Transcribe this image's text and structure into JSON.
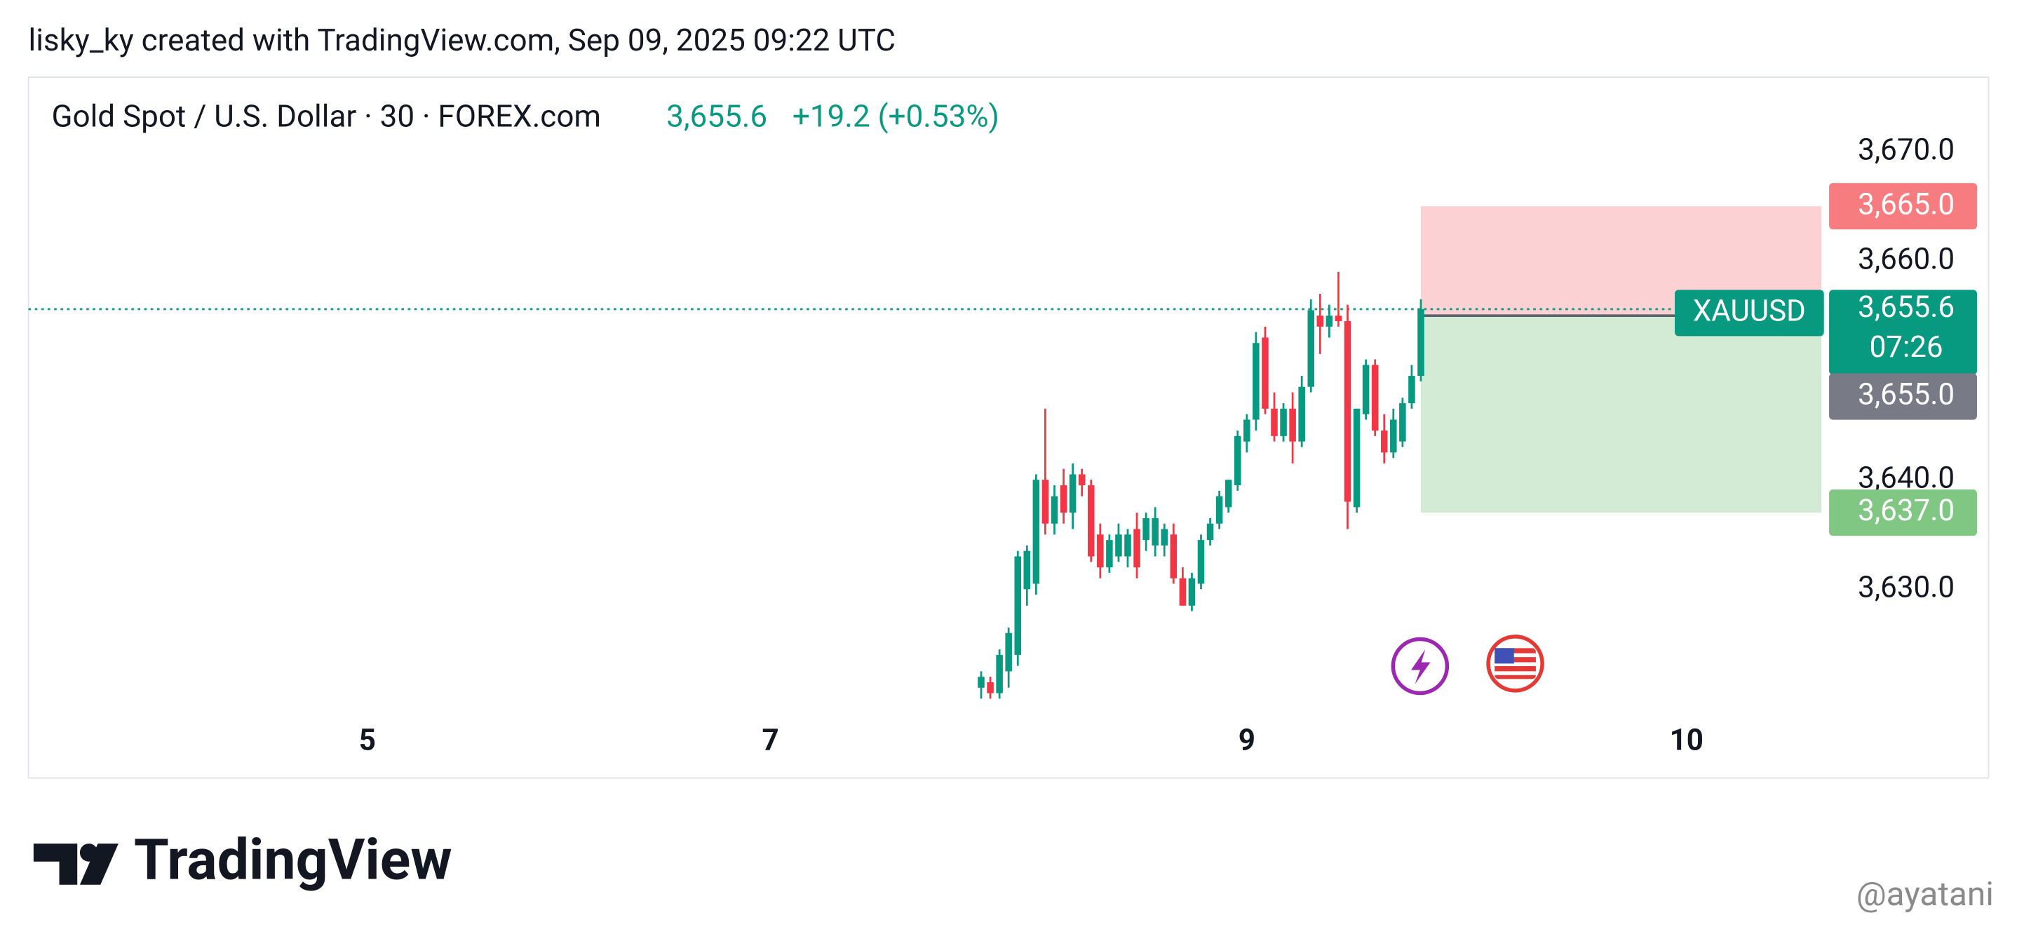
{
  "chart_data": {
    "type": "candlestick",
    "header": "lisky_ky created with TradingView.com, Sep 09, 2025 09:22 UTC",
    "title": "Gold Spot / U.S. Dollar · 30 · FOREX.com",
    "legend_price": "3,655.6",
    "legend_change": "+19.2 (+0.53%)",
    "up_color": "#089981",
    "down_color": "#f23645",
    "x": [
      -29,
      -28,
      -27,
      -26,
      -25,
      -24,
      -23,
      -22,
      -21,
      -20,
      -19,
      -18,
      -17,
      -16,
      -15,
      -14,
      -13,
      -12,
      -11,
      -10,
      -9,
      -8,
      -7,
      -6,
      -5,
      -4,
      -3,
      -2,
      -1,
      0,
      1,
      2,
      3,
      4,
      5,
      6,
      7,
      8,
      9,
      10,
      11,
      12,
      13,
      14,
      15,
      16,
      17,
      18,
      19
    ],
    "open": [
      3621.0,
      3621.5,
      3620.5,
      3622.5,
      3624.0,
      3630.0,
      3630.5,
      3640.0,
      3636.0,
      3639.5,
      3637.0,
      3640.5,
      3639.5,
      3635.0,
      3632.0,
      3633.0,
      3633.0,
      3635.5,
      3634.5,
      3634.0,
      3634.0,
      3635.0,
      3631.0,
      3628.5,
      3630.5,
      3634.5,
      3636.0,
      3637.5,
      3639.5,
      3643.5,
      3645.5,
      3653.0,
      3646.5,
      3644.0,
      3646.5,
      3643.5,
      3648.5,
      3655.0,
      3654.0,
      3655.0,
      3654.5,
      3637.5,
      3646.0,
      3650.5,
      3644.5,
      3642.5,
      3643.5,
      3647.0,
      3649.5
    ],
    "high": [
      3622.5,
      3622.0,
      3624.5,
      3626.5,
      3633.5,
      3634.0,
      3640.5,
      3646.5,
      3639.5,
      3641.0,
      3641.5,
      3641.0,
      3640.0,
      3636.0,
      3635.0,
      3636.0,
      3635.5,
      3637.0,
      3637.0,
      3637.5,
      3636.0,
      3636.0,
      3632.0,
      3631.5,
      3635.0,
      3636.5,
      3639.0,
      3640.0,
      3644.5,
      3646.0,
      3653.5,
      3654.0,
      3648.0,
      3647.0,
      3648.0,
      3649.5,
      3656.5,
      3657.0,
      3656.0,
      3659.0,
      3656.0,
      3646.5,
      3651.0,
      3651.0,
      3646.0,
      3646.5,
      3647.5,
      3650.5,
      3656.5
    ],
    "low": [
      3620.0,
      3620.0,
      3620.0,
      3621.0,
      3623.0,
      3628.5,
      3629.5,
      3635.0,
      3635.0,
      3636.0,
      3635.5,
      3638.5,
      3632.5,
      3631.0,
      3631.5,
      3632.5,
      3632.0,
      3631.0,
      3633.5,
      3633.0,
      3633.0,
      3630.5,
      3628.5,
      3628.0,
      3630.0,
      3634.0,
      3635.5,
      3637.0,
      3639.0,
      3642.5,
      3644.5,
      3646.0,
      3643.5,
      3643.5,
      3641.5,
      3643.0,
      3648.0,
      3651.5,
      3653.0,
      3654.0,
      3635.5,
      3637.0,
      3645.5,
      3644.0,
      3641.5,
      3642.0,
      3643.0,
      3646.5,
      3649.0
    ],
    "close": [
      3622.0,
      3620.5,
      3624.0,
      3626.0,
      3633.0,
      3633.5,
      3640.0,
      3636.0,
      3638.5,
      3637.0,
      3640.5,
      3639.5,
      3633.0,
      3632.0,
      3634.5,
      3635.0,
      3635.0,
      3632.0,
      3636.5,
      3636.5,
      3635.5,
      3631.0,
      3628.5,
      3631.0,
      3634.5,
      3636.0,
      3638.5,
      3640.0,
      3644.0,
      3645.5,
      3652.5,
      3646.5,
      3644.0,
      3646.5,
      3643.5,
      3648.5,
      3655.5,
      3654.0,
      3655.0,
      3654.5,
      3638.0,
      3646.5,
      3650.5,
      3644.5,
      3642.5,
      3645.5,
      3647.0,
      3649.5,
      3655.6
    ],
    "ylim": [
      3619.8,
      3676.8
    ],
    "yticks": [
      {
        "value": 3670,
        "label": "3,670.0"
      },
      {
        "value": 3660,
        "label": "3,660.0"
      },
      {
        "value": 3640,
        "label": "3,640.0"
      },
      {
        "value": 3630,
        "label": "3,630.0"
      }
    ],
    "xlim": [
      -133,
      63
    ],
    "xticks": [
      {
        "value": -96,
        "label": "5"
      },
      {
        "value": -52,
        "label": "7"
      },
      {
        "value": 0,
        "label": "9"
      },
      {
        "value": 48,
        "label": "10"
      }
    ],
    "grid": false,
    "last_price": {
      "value": 3655.6,
      "value_label": "3,655.6",
      "symbol": "XAUUSD",
      "countdown": "07:26",
      "color": "#089981"
    },
    "position": {
      "start": 19,
      "entry": 3655.0,
      "entry_label": "3,655.0",
      "entry_color": "#787b86",
      "stop": 3665.0,
      "stop_label": "3,665.0",
      "stop_color": "#f77c80",
      "target": 3637.0,
      "target_label": "3,637.0",
      "target_color": "#81c784"
    },
    "brand": "TradingView",
    "watermark": "@ayatani"
  }
}
